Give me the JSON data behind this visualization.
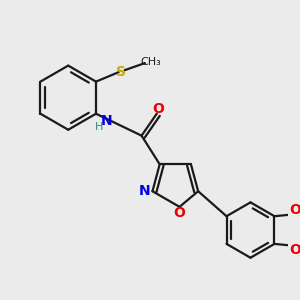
{
  "background_color": "#ebebeb",
  "atom_colors": {
    "C": "#1a1a1a",
    "N": "#0000ee",
    "O": "#ee0000",
    "S": "#ccaa00",
    "H": "#2a8a8a"
  },
  "bond_color": "#1a1a1a",
  "bond_width": 1.6,
  "figsize": [
    3.0,
    3.0
  ],
  "dpi": 100
}
